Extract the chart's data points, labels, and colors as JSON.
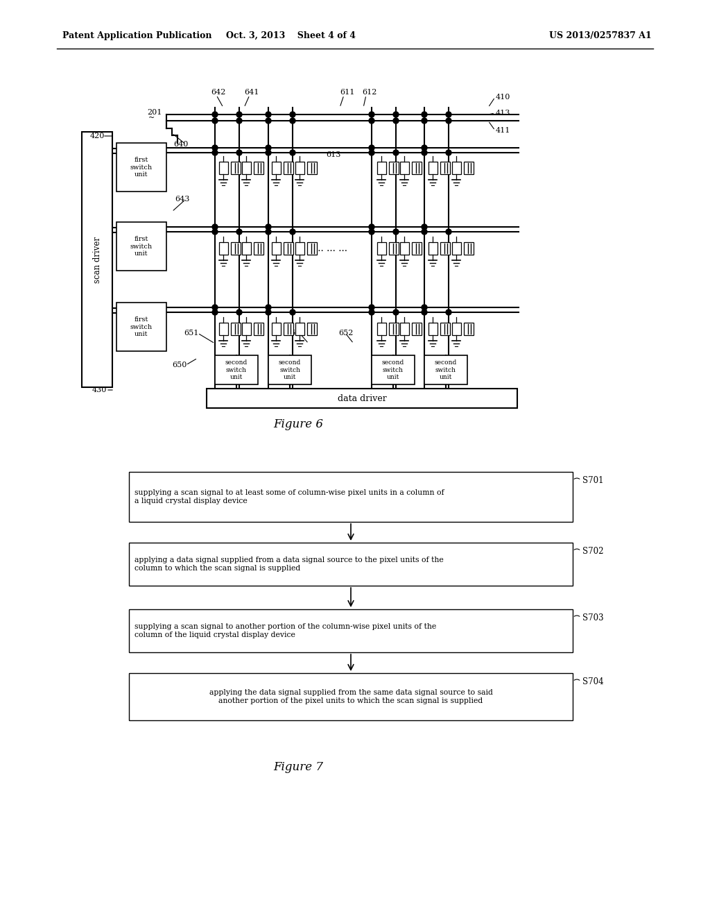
{
  "bg_color": "#ffffff",
  "header_left": "Patent Application Publication",
  "header_center": "Oct. 3, 2013    Sheet 4 of 4",
  "header_right": "US 2013/0257837 A1",
  "figure6_caption": "Figure 6",
  "figure7_caption": "Figure 7",
  "step_labels": [
    "S701",
    "S702",
    "S703",
    "S704"
  ],
  "step_texts_left": [
    "supplying a scan signal to at least some of column-wise pixel units in a column of\na liquid crystal display device",
    "applying a data signal supplied from a data signal source to the pixel units of the\ncolumn to which the scan signal is supplied",
    "supplying a scan signal to another portion of the column-wise pixel units of the\ncolumn of the liquid crystal display device",
    null
  ],
  "step_texts_center": [
    null,
    null,
    null,
    "applying the data signal supplied from the same data signal source to said\nanother portion of the pixel units to which the scan signal is supplied"
  ],
  "scan_driver_label": "scan driver",
  "data_driver_label": "data driver"
}
